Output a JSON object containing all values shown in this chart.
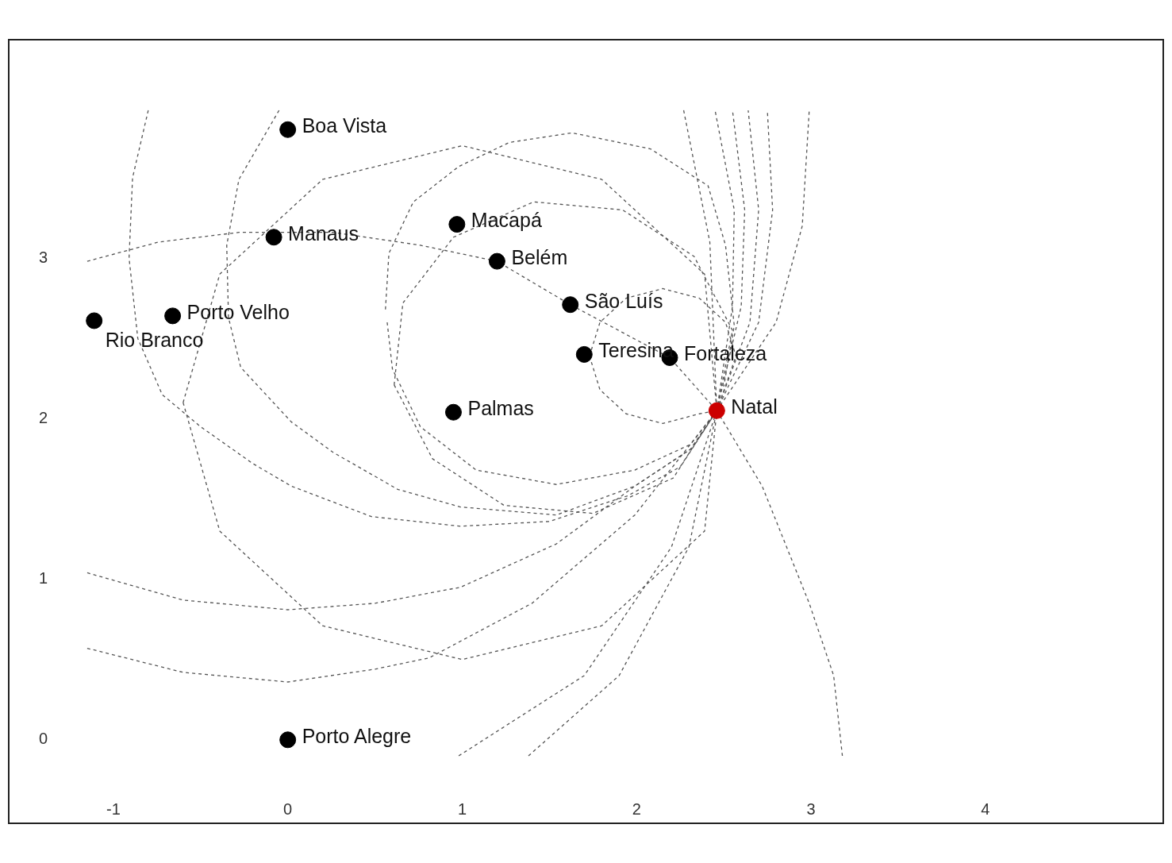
{
  "chart_data": {
    "type": "scatter",
    "xlim": [
      -1.6,
      5.02
    ],
    "ylim": [
      -0.52,
      4.36
    ],
    "xticks": [
      -1,
      0,
      1,
      2,
      3,
      4
    ],
    "yticks": [
      0,
      1,
      2,
      3
    ],
    "grid": false,
    "legend": false,
    "marker": "circle",
    "series": [
      {
        "type": "scatter",
        "x": [
          0,
          -0.08,
          0.97,
          1.2,
          1.62,
          -0.66,
          -1.11,
          1.7,
          2.19,
          2.46,
          0.95,
          0
        ],
        "values": [
          3.8,
          3.13,
          3.21,
          2.98,
          2.71,
          2.64,
          2.61,
          2.4,
          2.38,
          2.05,
          2.04,
          0
        ],
        "colors": [
          "#000000",
          "#000000",
          "#000000",
          "#000000",
          "#000000",
          "#000000",
          "#000000",
          "#000000",
          "#000000",
          "#cc0000",
          "#000000",
          "#000000"
        ]
      },
      {
        "type": "line",
        "color": "#555555",
        "line_style": "dashed",
        "marker": "none",
        "x": [
          -1.15,
          -0.74,
          -0.28,
          0.26,
          0.76,
          1.2,
          1.62,
          2.19,
          2.46
        ],
        "values": [
          2.98,
          3.1,
          3.16,
          3.16,
          3.08,
          2.98,
          2.71,
          2.38,
          2.05
        ]
      },
      {
        "type": "line",
        "color": "#555555",
        "line_style": "dashed",
        "marker": "none",
        "x": [
          0.61,
          0.66,
          0.95,
          1.41,
          1.92,
          2.33,
          2.55
        ],
        "values": [
          2.21,
          2.72,
          3.13,
          3.35,
          3.3,
          3.01,
          2.55
        ]
      },
      {
        "type": "line",
        "color": "#555555",
        "line_style": "dashed",
        "marker": "none",
        "x": [
          0.61,
          0.83,
          1.24,
          1.75,
          2.21,
          2.46,
          2.55
        ],
        "values": [
          2.21,
          1.75,
          1.46,
          1.41,
          1.63,
          2.05,
          2.55
        ]
      },
      {
        "type": "line",
        "color": "#555555",
        "line_style": "dashed",
        "marker": "none",
        "x": [
          -0.6,
          -0.39,
          0.2,
          1.0,
          1.8,
          2.39,
          2.46
        ],
        "values": [
          2.1,
          2.9,
          3.49,
          3.7,
          3.49,
          2.9,
          2.05
        ]
      },
      {
        "type": "line",
        "color": "#555555",
        "line_style": "dashed",
        "marker": "none",
        "x": [
          -0.6,
          -0.39,
          0.2,
          1.0,
          1.8,
          2.39,
          2.46
        ],
        "values": [
          2.1,
          1.3,
          0.71,
          0.5,
          0.71,
          1.3,
          2.05
        ]
      },
      {
        "type": "line",
        "color": "#555555",
        "line_style": "dashed",
        "marker": "none",
        "x": [
          -0.8,
          -0.89,
          -0.91,
          -0.86,
          -0.72,
          -0.5,
          -0.2,
          0.02,
          0.48,
          0.99,
          1.5,
          1.95,
          2.25,
          2.46
        ],
        "values": [
          3.92,
          3.5,
          3.0,
          2.5,
          2.15,
          1.95,
          1.72,
          1.58,
          1.39,
          1.33,
          1.36,
          1.52,
          1.7,
          2.05
        ]
      },
      {
        "type": "line",
        "color": "#555555",
        "line_style": "dashed",
        "marker": "none",
        "x": [
          -0.05,
          -0.28,
          -0.35,
          -0.34,
          -0.27,
          0.02,
          0.26,
          0.63,
          0.99,
          1.54,
          1.99,
          2.31,
          2.46
        ],
        "values": [
          3.92,
          3.49,
          3.08,
          2.63,
          2.32,
          1.98,
          1.79,
          1.56,
          1.45,
          1.4,
          1.58,
          1.81,
          2.05
        ]
      },
      {
        "type": "line",
        "color": "#555555",
        "line_style": "dashed",
        "marker": "none",
        "x": [
          0.56,
          0.58,
          0.72,
          0.98,
          1.27,
          1.63,
          2.08,
          2.41,
          2.51,
          2.56,
          2.5
        ],
        "values": [
          2.68,
          3.03,
          3.35,
          3.57,
          3.72,
          3.78,
          3.68,
          3.45,
          3.08,
          2.58,
          2.2
        ]
      },
      {
        "type": "line",
        "color": "#555555",
        "line_style": "dashed",
        "marker": "none",
        "x": [
          0.57,
          0.6,
          0.76,
          1.08,
          1.54,
          1.99,
          2.31,
          2.46
        ],
        "values": [
          2.6,
          2.31,
          1.95,
          1.68,
          1.59,
          1.68,
          1.84,
          2.05
        ]
      },
      {
        "type": "line",
        "color": "#555555",
        "line_style": "dashed",
        "marker": "none",
        "x": [
          1.73,
          1.79,
          1.94,
          2.15,
          2.36,
          2.51,
          2.57
        ],
        "values": [
          2.39,
          2.6,
          2.75,
          2.81,
          2.75,
          2.6,
          2.39
        ]
      },
      {
        "type": "line",
        "color": "#555555",
        "line_style": "dashed",
        "marker": "none",
        "x": [
          1.73,
          1.79,
          1.94,
          2.15,
          2.36,
          2.46,
          2.57
        ],
        "values": [
          2.39,
          2.18,
          2.03,
          1.97,
          2.03,
          2.05,
          2.39
        ]
      },
      {
        "type": "line",
        "color": "#555555",
        "line_style": "dashed",
        "marker": "none",
        "x": [
          2.27,
          2.42,
          2.46
        ],
        "values": [
          3.92,
          3.1,
          2.05
        ]
      },
      {
        "type": "line",
        "color": "#555555",
        "line_style": "dashed",
        "marker": "none",
        "x": [
          2.46,
          2.55,
          2.56,
          2.45
        ],
        "values": [
          2.05,
          2.7,
          3.3,
          3.92
        ]
      },
      {
        "type": "line",
        "color": "#555555",
        "line_style": "dashed",
        "marker": "none",
        "x": [
          2.46,
          2.6,
          2.62,
          2.55
        ],
        "values": [
          2.05,
          2.7,
          3.3,
          3.92
        ]
      },
      {
        "type": "line",
        "color": "#555555",
        "line_style": "dashed",
        "marker": "none",
        "x": [
          2.46,
          2.65,
          2.7,
          2.64
        ],
        "values": [
          2.05,
          2.6,
          3.3,
          3.92
        ]
      },
      {
        "type": "line",
        "color": "#555555",
        "line_style": "dashed",
        "marker": "none",
        "x": [
          2.46,
          2.7,
          2.78,
          2.75
        ],
        "values": [
          2.05,
          2.6,
          3.3,
          3.92
        ]
      },
      {
        "type": "line",
        "color": "#555555",
        "line_style": "dashed",
        "marker": "none",
        "x": [
          2.46,
          2.8,
          2.95,
          2.99
        ],
        "values": [
          2.05,
          2.6,
          3.2,
          3.92
        ]
      },
      {
        "type": "line",
        "color": "#555555",
        "line_style": "dashed",
        "marker": "none",
        "x": [
          -1.15,
          -0.6,
          0,
          0.5,
          0.99,
          1.54,
          1.99,
          2.31,
          2.46
        ],
        "values": [
          1.04,
          0.87,
          0.81,
          0.85,
          0.95,
          1.22,
          1.58,
          1.81,
          2.05
        ]
      },
      {
        "type": "line",
        "color": "#555555",
        "line_style": "dashed",
        "marker": "none",
        "x": [
          -1.15,
          -0.6,
          0,
          0.5,
          0.81,
          1.4,
          1.99,
          2.46
        ],
        "values": [
          0.57,
          0.42,
          0.36,
          0.44,
          0.51,
          0.85,
          1.4,
          2.05
        ]
      },
      {
        "type": "line",
        "color": "#555555",
        "line_style": "dashed",
        "marker": "none",
        "x": [
          0.98,
          1.7,
          2.2,
          2.46
        ],
        "values": [
          -0.1,
          0.4,
          1.2,
          2.05
        ]
      },
      {
        "type": "line",
        "color": "#555555",
        "line_style": "dashed",
        "marker": "none",
        "x": [
          1.38,
          1.9,
          2.3,
          2.46
        ],
        "values": [
          -0.1,
          0.4,
          1.2,
          2.05
        ]
      },
      {
        "type": "line",
        "color": "#555555",
        "line_style": "dashed",
        "marker": "none",
        "x": [
          2.46,
          2.72,
          2.99,
          3.13,
          3.18
        ],
        "values": [
          2.05,
          1.58,
          0.85,
          0.4,
          -0.1
        ]
      }
    ],
    "annotations": [
      {
        "text": "Boa Vista",
        "x": 0,
        "y": 3.8
      },
      {
        "text": "Manaus",
        "x": -0.08,
        "y": 3.13
      },
      {
        "text": "Macapá",
        "x": 0.97,
        "y": 3.21
      },
      {
        "text": "Belém",
        "x": 1.2,
        "y": 2.98
      },
      {
        "text": "São Luís",
        "x": 1.62,
        "y": 2.71
      },
      {
        "text": "Porto Velho",
        "x": -0.66,
        "y": 2.64
      },
      {
        "text": "Rio Branco",
        "x": -1.11,
        "y": 2.61
      },
      {
        "text": "Teresina",
        "x": 1.7,
        "y": 2.4
      },
      {
        "text": "Fortaleza",
        "x": 2.19,
        "y": 2.38
      },
      {
        "text": "Natal",
        "x": 2.46,
        "y": 2.05
      },
      {
        "text": "Palmas",
        "x": 0.95,
        "y": 2.04
      },
      {
        "text": "Porto Alegre",
        "x": 0,
        "y": 0
      }
    ]
  }
}
